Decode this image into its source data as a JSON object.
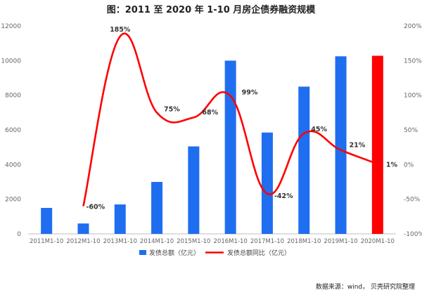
{
  "chart_data": {
    "type": "bar",
    "title": "图：2011 至 2020 年 1-10 月房企债券融资规模",
    "categories": [
      "2011M1-10",
      "2012M1-10",
      "2013M1-10",
      "2014M1-10",
      "2015M1-10",
      "2016M1-10",
      "2017M1-10",
      "2018M1-10",
      "2019M1-10",
      "2020M1-10"
    ],
    "series": [
      {
        "name": "发债总额（亿元）",
        "type": "bar",
        "axis": "left",
        "color": "#1f6ef0",
        "highlight_color": "#ff0000",
        "highlight_index": 9,
        "values": [
          1500,
          600,
          1700,
          3000,
          5050,
          10000,
          5850,
          8500,
          10250,
          10280
        ]
      },
      {
        "name": "发债总额同比（亿元）",
        "type": "line",
        "axis": "right",
        "color": "#ff0000",
        "values": [
          null,
          -60,
          185,
          75,
          68,
          99,
          -42,
          45,
          21,
          1
        ],
        "labels": [
          "",
          "-60%",
          "185%",
          "75%",
          "68%",
          "99%",
          "-42%",
          "45%",
          "21%",
          "1%"
        ]
      }
    ],
    "y_left": {
      "min": 0,
      "max": 12000,
      "ticks": [
        0,
        2000,
        4000,
        6000,
        8000,
        10000,
        12000
      ]
    },
    "y_right": {
      "min": -100,
      "max": 200,
      "ticks": [
        "-100%",
        "-50%",
        "0%",
        "50%",
        "100%",
        "150%",
        "200%"
      ]
    },
    "legend_position": "bottom",
    "grid": false
  },
  "source": "数据来源：wind， 贝壳研究院整理"
}
